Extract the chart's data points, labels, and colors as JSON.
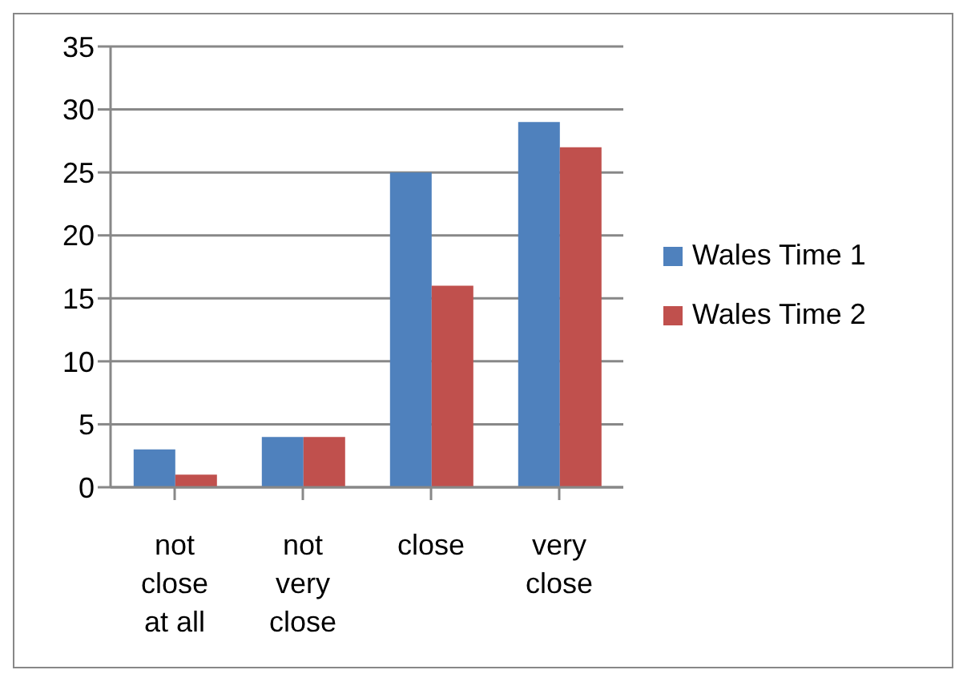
{
  "chart_data": {
    "type": "bar",
    "categories": [
      "not close at all",
      "not very close",
      "close",
      "very close"
    ],
    "series": [
      {
        "name": "Wales Time 1",
        "color": "#4f81bd",
        "values": [
          3,
          4,
          25,
          29
        ]
      },
      {
        "name": "Wales Time 2",
        "color": "#c0504d",
        "values": [
          1,
          4,
          16,
          27
        ]
      }
    ],
    "ylim": [
      0,
      35
    ],
    "yticks": [
      0,
      5,
      10,
      15,
      20,
      25,
      30,
      35
    ],
    "grid": "y",
    "legend": "right"
  }
}
